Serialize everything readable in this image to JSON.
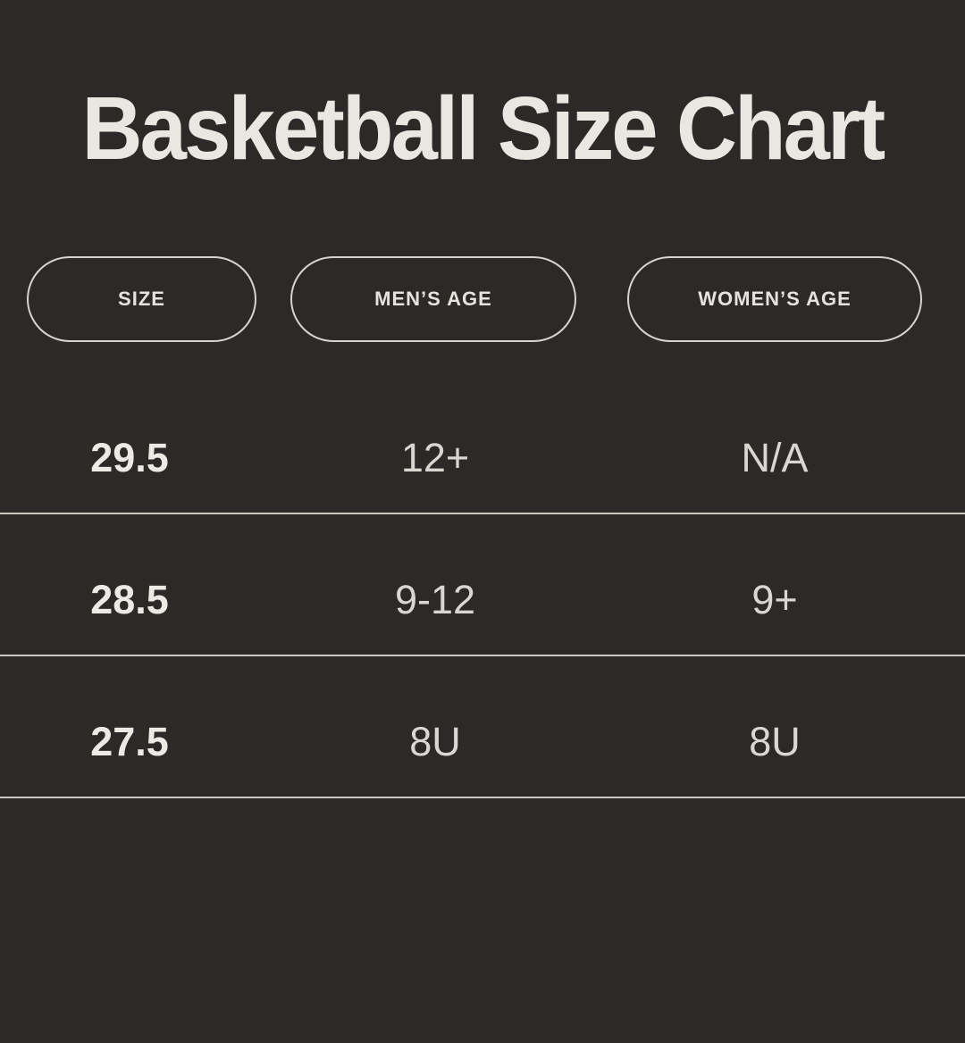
{
  "title": "Basketball Size Chart",
  "colors": {
    "background": "#2b2a28",
    "title_text": "#e9e7e1",
    "pill_border": "#d6d4ce",
    "pill_text": "#e5e3dd",
    "size_text": "#eceae4",
    "value_text": "#d9d7d1",
    "divider": "#ccc9c3"
  },
  "header": {
    "columns": [
      {
        "label": "SIZE"
      },
      {
        "label": "MEN’S AGE"
      },
      {
        "label": "WOMEN’S AGE"
      }
    ]
  },
  "rows": [
    {
      "size": "29.5",
      "mens_age": "12+",
      "womens_age": "N/A"
    },
    {
      "size": "28.5",
      "mens_age": "9-12",
      "womens_age": "9+"
    },
    {
      "size": "27.5",
      "mens_age": "8U",
      "womens_age": "8U"
    }
  ],
  "chart_data": {
    "type": "table",
    "title": "Basketball Size Chart",
    "columns": [
      "SIZE",
      "MEN’S AGE",
      "WOMEN’S AGE"
    ],
    "rows": [
      [
        "29.5",
        "12+",
        "N/A"
      ],
      [
        "28.5",
        "9-12",
        "9+"
      ],
      [
        "27.5",
        "8U",
        "8U"
      ]
    ]
  }
}
